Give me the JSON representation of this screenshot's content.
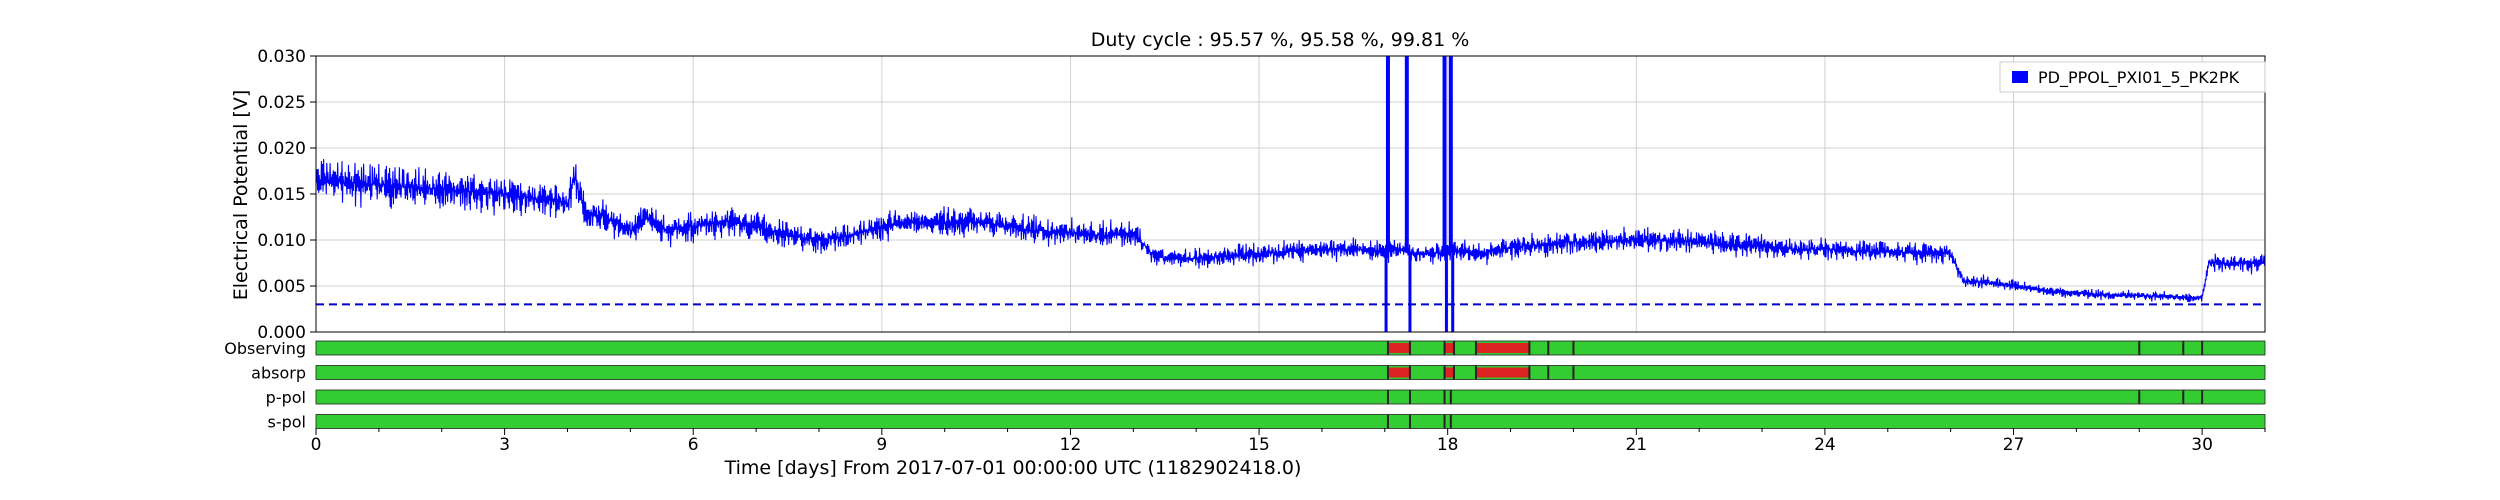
{
  "chart_data": {
    "type": "line",
    "title": "Duty cycle : 95.57 %, 95.58 %, 99.81 %",
    "xlabel": "Time [days] From 2017-07-01 00:00:00 UTC (1182902418.0)",
    "ylabel": "Electrical Potential [V]",
    "xlim": [
      0,
      31
    ],
    "ylim": [
      0,
      0.03
    ],
    "grid": true,
    "legend_position": "top-right",
    "x_ticks": [
      "0",
      "3",
      "6",
      "9",
      "12",
      "15",
      "18",
      "21",
      "24",
      "27",
      "30"
    ],
    "y_ticks": [
      "0.000",
      "0.005",
      "0.010",
      "0.015",
      "0.020",
      "0.025",
      "0.030"
    ],
    "threshold": 0.003,
    "series": [
      {
        "name": "PD_PPOL_PXI01_5_PK2PK",
        "color": "#0000ff",
        "x": [
          0,
          0.5,
          1,
          1.5,
          2,
          2.5,
          3,
          3.5,
          4,
          4.1,
          4.3,
          4.6,
          5,
          5.3,
          5.6,
          6,
          6.5,
          7,
          7.5,
          8,
          8.5,
          9,
          9.5,
          10,
          10.5,
          11,
          11.5,
          12,
          12.5,
          13,
          13.3,
          13.5,
          14,
          14.5,
          15,
          15.5,
          16,
          16.5,
          17,
          17.3,
          17.5,
          18,
          18.1,
          18.5,
          19,
          19.5,
          20,
          20.5,
          21,
          21.5,
          22,
          22.5,
          23,
          23.5,
          24,
          24.5,
          25,
          25.5,
          26,
          26.2,
          26.5,
          27,
          27.5,
          28,
          28.5,
          29,
          29.5,
          30,
          30.1,
          30.5,
          31
        ],
        "y": [
          0.0165,
          0.0163,
          0.016,
          0.0158,
          0.0155,
          0.0152,
          0.015,
          0.0145,
          0.014,
          0.017,
          0.013,
          0.0125,
          0.011,
          0.0125,
          0.011,
          0.0115,
          0.012,
          0.0115,
          0.0105,
          0.01,
          0.0105,
          0.0115,
          0.012,
          0.0118,
          0.012,
          0.0115,
          0.011,
          0.0108,
          0.0105,
          0.0108,
          0.0085,
          0.008,
          0.008,
          0.0082,
          0.0085,
          0.0088,
          0.009,
          0.009,
          0.0088,
          0.009,
          0.0085,
          0.0087,
          0.0088,
          0.0085,
          0.0092,
          0.0095,
          0.0098,
          0.0098,
          0.01,
          0.01,
          0.0098,
          0.0095,
          0.0093,
          0.009,
          0.009,
          0.0088,
          0.0087,
          0.0086,
          0.0085,
          0.0055,
          0.0055,
          0.005,
          0.0045,
          0.0042,
          0.004,
          0.004,
          0.0038,
          0.0037,
          0.0075,
          0.0075,
          0.0075
        ],
        "spikes": [
          {
            "x": 17.05,
            "y": 0.03
          },
          {
            "x": 17.35,
            "y": 0.03
          },
          {
            "x": 17.95,
            "y": 0.03
          },
          {
            "x": 18.05,
            "y": 0.03
          }
        ],
        "dropouts": [
          {
            "x": 17.02,
            "y": 0
          },
          {
            "x": 17.4,
            "y": 0
          },
          {
            "x": 17.98,
            "y": 0
          },
          {
            "x": 18.08,
            "y": 0
          }
        ]
      }
    ],
    "state_bars": [
      {
        "label": "Observing",
        "on_color": "#33cc33",
        "off_color": "#dd2222",
        "off_segments": [
          [
            17.05,
            17.4
          ],
          [
            17.95,
            18.1
          ],
          [
            18.45,
            19.3
          ]
        ],
        "markers": [
          17.05,
          17.4,
          17.95,
          18.1,
          18.45,
          19.3,
          19.6,
          20.0,
          29.0,
          29.7,
          30.0
        ]
      },
      {
        "label": "absorp",
        "on_color": "#33cc33",
        "off_color": "#dd2222",
        "off_segments": [
          [
            17.05,
            17.4
          ],
          [
            17.95,
            18.1
          ],
          [
            18.45,
            19.3
          ]
        ],
        "markers": [
          17.05,
          17.4,
          17.95,
          18.1,
          18.45,
          19.3,
          19.6,
          20.0
        ]
      },
      {
        "label": "p-pol",
        "on_color": "#33cc33",
        "off_color": "#dd2222",
        "off_segments": [],
        "markers": [
          17.05,
          17.4,
          17.95,
          18.05,
          29.0,
          29.7,
          30.0
        ]
      },
      {
        "label": "s-pol",
        "on_color": "#33cc33",
        "off_color": "#dd2222",
        "off_segments": [],
        "markers": [
          17.05,
          17.4,
          17.95,
          18.05
        ]
      }
    ]
  }
}
